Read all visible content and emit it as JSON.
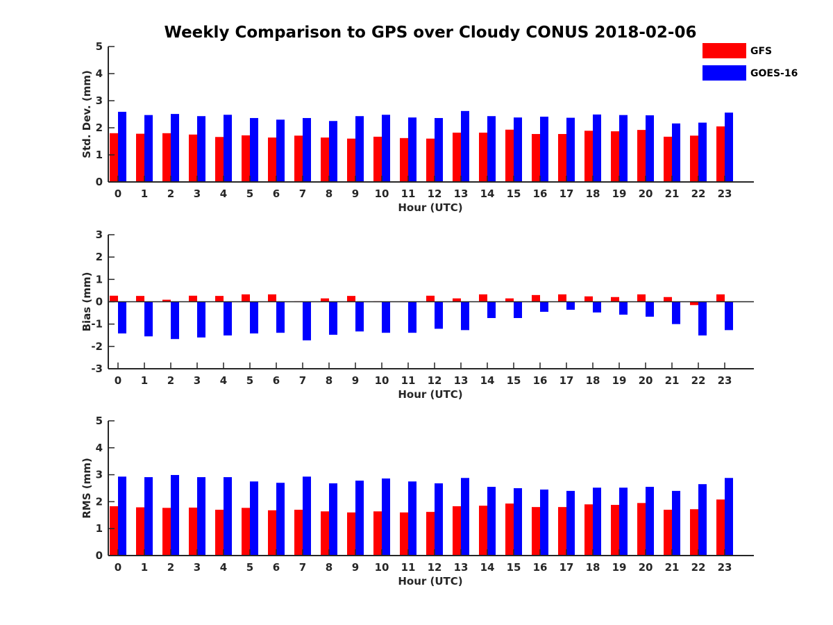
{
  "title": "Weekly Comparison to GPS over Cloudy CONUS 2018-02-06",
  "legend": {
    "placement": "top-right",
    "entries": [
      {
        "name": "GFS",
        "color": "#ff0000"
      },
      {
        "name": "GOES-16",
        "color": "#0000ff"
      }
    ]
  },
  "chart_data": [
    {
      "type": "bar",
      "xlabel": "Hour (UTC)",
      "ylabel": "Std. Dev. (mm)",
      "ylim": [
        0,
        5
      ],
      "yticks": [
        0,
        1,
        2,
        3,
        4,
        5
      ],
      "categories": [
        "0",
        "1",
        "2",
        "3",
        "4",
        "5",
        "6",
        "7",
        "8",
        "9",
        "10",
        "11",
        "12",
        "13",
        "14",
        "15",
        "16",
        "17",
        "18",
        "19",
        "20",
        "21",
        "22",
        "23"
      ],
      "series": [
        {
          "name": "GFS",
          "color": "#ff0000",
          "values": [
            1.8,
            1.78,
            1.8,
            1.75,
            1.66,
            1.72,
            1.64,
            1.71,
            1.64,
            1.6,
            1.67,
            1.62,
            1.6,
            1.82,
            1.82,
            1.93,
            1.77,
            1.77,
            1.89,
            1.87,
            1.92,
            1.67,
            1.71,
            2.05
          ]
        },
        {
          "name": "GOES-16",
          "color": "#0000ff",
          "values": [
            2.59,
            2.47,
            2.51,
            2.43,
            2.48,
            2.36,
            2.3,
            2.36,
            2.25,
            2.43,
            2.48,
            2.38,
            2.36,
            2.62,
            2.43,
            2.38,
            2.41,
            2.37,
            2.49,
            2.47,
            2.46,
            2.16,
            2.19,
            2.56
          ]
        }
      ]
    },
    {
      "type": "bar",
      "xlabel": "Hour (UTC)",
      "ylabel": "Bias (mm)",
      "ylim": [
        -3,
        3
      ],
      "yticks": [
        -3,
        -2,
        -1,
        0,
        1,
        2,
        3
      ],
      "categories": [
        "0",
        "1",
        "2",
        "3",
        "4",
        "5",
        "6",
        "7",
        "8",
        "9",
        "10",
        "11",
        "12",
        "13",
        "14",
        "15",
        "16",
        "17",
        "18",
        "19",
        "20",
        "21",
        "22",
        "23"
      ],
      "series": [
        {
          "name": "GFS",
          "color": "#ff0000",
          "values": [
            0.27,
            0.26,
            0.09,
            0.27,
            0.26,
            0.33,
            0.33,
            0.02,
            0.15,
            0.26,
            0.02,
            0.02,
            0.27,
            0.15,
            0.33,
            0.15,
            0.3,
            0.33,
            0.24,
            0.21,
            0.33,
            0.21,
            -0.15,
            0.33
          ]
        },
        {
          "name": "GOES-16",
          "color": "#0000ff",
          "values": [
            -1.42,
            -1.55,
            -1.67,
            -1.6,
            -1.51,
            -1.42,
            -1.39,
            -1.73,
            -1.48,
            -1.33,
            -1.39,
            -1.39,
            -1.21,
            -1.27,
            -0.73,
            -0.73,
            -0.45,
            -0.36,
            -0.48,
            -0.58,
            -0.67,
            -1.0,
            -1.51,
            -1.27
          ]
        }
      ]
    },
    {
      "type": "bar",
      "xlabel": "Hour (UTC)",
      "ylabel": "RMS (mm)",
      "ylim": [
        0,
        5
      ],
      "yticks": [
        0,
        1,
        2,
        3,
        4,
        5
      ],
      "categories": [
        "0",
        "1",
        "2",
        "3",
        "4",
        "5",
        "6",
        "7",
        "8",
        "9",
        "10",
        "11",
        "12",
        "13",
        "14",
        "15",
        "16",
        "17",
        "18",
        "19",
        "20",
        "21",
        "22",
        "23"
      ],
      "series": [
        {
          "name": "GFS",
          "color": "#ff0000",
          "values": [
            1.83,
            1.79,
            1.77,
            1.78,
            1.7,
            1.77,
            1.68,
            1.7,
            1.64,
            1.6,
            1.64,
            1.6,
            1.62,
            1.83,
            1.85,
            1.93,
            1.8,
            1.8,
            1.9,
            1.88,
            1.95,
            1.7,
            1.72,
            2.08
          ]
        },
        {
          "name": "GOES-16",
          "color": "#0000ff",
          "values": [
            2.93,
            2.91,
            2.99,
            2.91,
            2.91,
            2.75,
            2.7,
            2.93,
            2.68,
            2.78,
            2.86,
            2.75,
            2.68,
            2.88,
            2.55,
            2.5,
            2.45,
            2.4,
            2.52,
            2.52,
            2.55,
            2.4,
            2.65,
            2.88
          ]
        }
      ]
    }
  ]
}
